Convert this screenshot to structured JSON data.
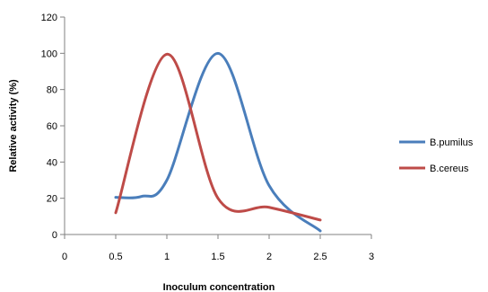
{
  "chart_data": {
    "type": "line",
    "title": "",
    "xlabel": "Inoculum concentration",
    "ylabel": "Relative activity (%)",
    "xlim": [
      0,
      3
    ],
    "ylim": [
      0,
      120
    ],
    "xticks": [
      "0",
      "0.5",
      "1",
      "1.5",
      "2",
      "2.5",
      "3"
    ],
    "yticks": [
      "0",
      "20",
      "40",
      "60",
      "80",
      "100",
      "120"
    ],
    "grid": false,
    "legend_position": "right",
    "series": [
      {
        "name": "B.pumilus",
        "color": "#4A7EBB",
        "x": [
          0.5,
          0.75,
          1.0,
          1.5,
          2.0,
          2.5
        ],
        "y": [
          20.5,
          21,
          30,
          100,
          27,
          2
        ]
      },
      {
        "name": "B.cereus",
        "color": "#BE4B48",
        "x": [
          0.5,
          1.0,
          1.5,
          2.0,
          2.5
        ],
        "y": [
          12,
          99.5,
          20,
          15,
          8
        ]
      }
    ]
  }
}
